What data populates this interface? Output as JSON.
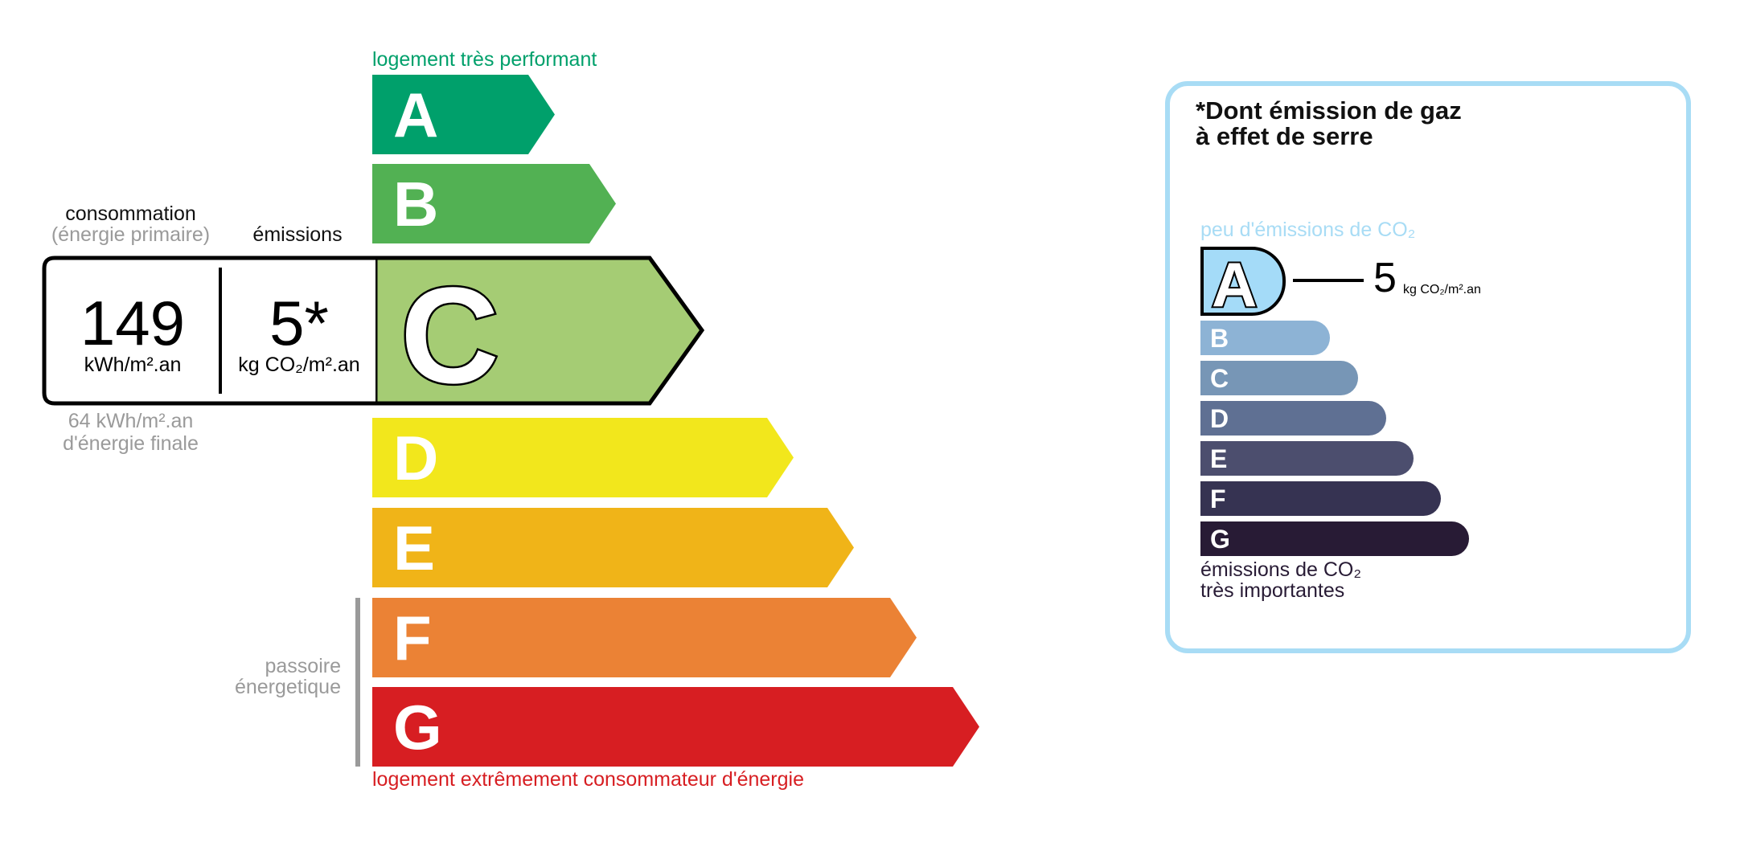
{
  "energy": {
    "top_label": "logement très performant",
    "bottom_label": "logement extrêmement consommateur d'énergie",
    "classes": [
      {
        "letter": "A",
        "color": "#00a06b"
      },
      {
        "letter": "B",
        "color": "#52b153"
      },
      {
        "letter": "C",
        "color": "#a5cc74"
      },
      {
        "letter": "D",
        "color": "#f2e71c"
      },
      {
        "letter": "E",
        "color": "#f0b418"
      },
      {
        "letter": "F",
        "color": "#eb8235"
      },
      {
        "letter": "G",
        "color": "#d71e22"
      }
    ],
    "current_class": "C",
    "consumption_title": "consommation",
    "consumption_subtitle": "(énergie primaire)",
    "emissions_title": "émissions",
    "consumption_value": "149",
    "consumption_unit": "kWh/m².an",
    "emissions_value": "5*",
    "emissions_unit": "kg CO₂/m².an",
    "final_energy_value": "64 kWh/m².an",
    "final_energy_label": "d'énergie finale",
    "passoire_line1": "passoire",
    "passoire_line2": "énergetique"
  },
  "ges": {
    "title_line1": "*Dont émission de gaz",
    "title_line2": "à effet de serre",
    "top_label": "peu d'émissions de CO₂",
    "bottom_line1": "émissions de CO₂",
    "bottom_line2": "très importantes",
    "current_class": "A",
    "value": "5",
    "unit": "kg CO₂/m².an",
    "classes": [
      {
        "letter": "A",
        "color": "#a4dbf8"
      },
      {
        "letter": "B",
        "color": "#8db3d5"
      },
      {
        "letter": "C",
        "color": "#7796b6"
      },
      {
        "letter": "D",
        "color": "#5f7093"
      },
      {
        "letter": "E",
        "color": "#4c4e6e"
      },
      {
        "letter": "F",
        "color": "#363352"
      },
      {
        "letter": "G",
        "color": "#281b35"
      }
    ],
    "border_color": "#a8dcf5"
  }
}
